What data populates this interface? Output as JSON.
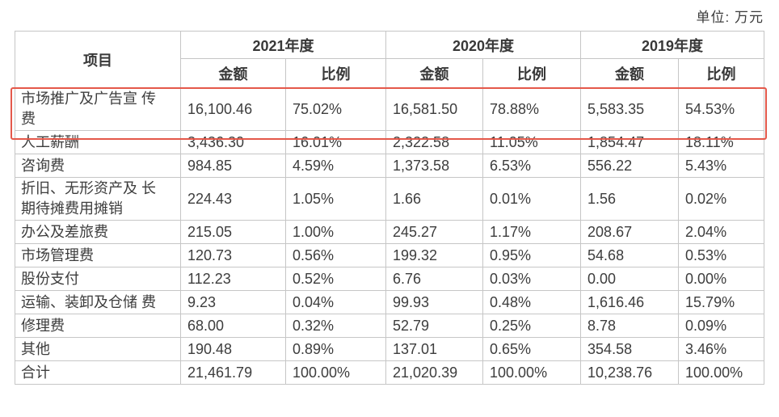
{
  "unit_label": "单位: 万元",
  "colors": {
    "highlight_border": "#e4584a",
    "table_border": "#c6c6c6",
    "text": "#3d3d3d"
  },
  "table": {
    "item_header": "项目",
    "year_groups": [
      "2021年度",
      "2020年度",
      "2019年度"
    ],
    "sub_headers": {
      "amount": "金额",
      "ratio": "比例"
    },
    "rows": [
      {
        "item": "市场推广及广告宣 传\n费",
        "highlighted": true,
        "values": [
          "16,100.46",
          "75.02%",
          "16,581.50",
          "78.88%",
          "5,583.35",
          "54.53%"
        ]
      },
      {
        "item": "人工薪酬",
        "values": [
          "3,436.30",
          "16.01%",
          "2,322.58",
          "11.05%",
          "1,854.47",
          "18.11%"
        ]
      },
      {
        "item": "咨询费",
        "values": [
          "984.85",
          "4.59%",
          "1,373.58",
          "6.53%",
          "556.22",
          "5.43%"
        ]
      },
      {
        "item": "折旧、无形资产及 长\n期待摊费用摊销",
        "values": [
          "224.43",
          "1.05%",
          "1.66",
          "0.01%",
          "1.56",
          "0.02%"
        ]
      },
      {
        "item": "办公及差旅费",
        "values": [
          "215.05",
          "1.00%",
          "245.27",
          "1.17%",
          "208.67",
          "2.04%"
        ]
      },
      {
        "item": "市场管理费",
        "values": [
          "120.73",
          "0.56%",
          "199.32",
          "0.95%",
          "54.68",
          "0.53%"
        ]
      },
      {
        "item": "股份支付",
        "values": [
          "112.23",
          "0.52%",
          "6.76",
          "0.03%",
          "0.00",
          "0.00%"
        ]
      },
      {
        "item": "运输、装卸及仓储 费",
        "values": [
          "9.23",
          "0.04%",
          "99.93",
          "0.48%",
          "1,616.46",
          "15.79%"
        ]
      },
      {
        "item": "修理费",
        "values": [
          "68.00",
          "0.32%",
          "52.79",
          "0.25%",
          "8.78",
          "0.09%"
        ]
      },
      {
        "item": "其他",
        "values": [
          "190.48",
          "0.89%",
          "137.01",
          "0.65%",
          "354.58",
          "3.46%"
        ]
      },
      {
        "item": "合计",
        "values": [
          "21,461.79",
          "100.00%",
          "21,020.39",
          "100.00%",
          "10,238.76",
          "100.00%"
        ]
      }
    ]
  }
}
